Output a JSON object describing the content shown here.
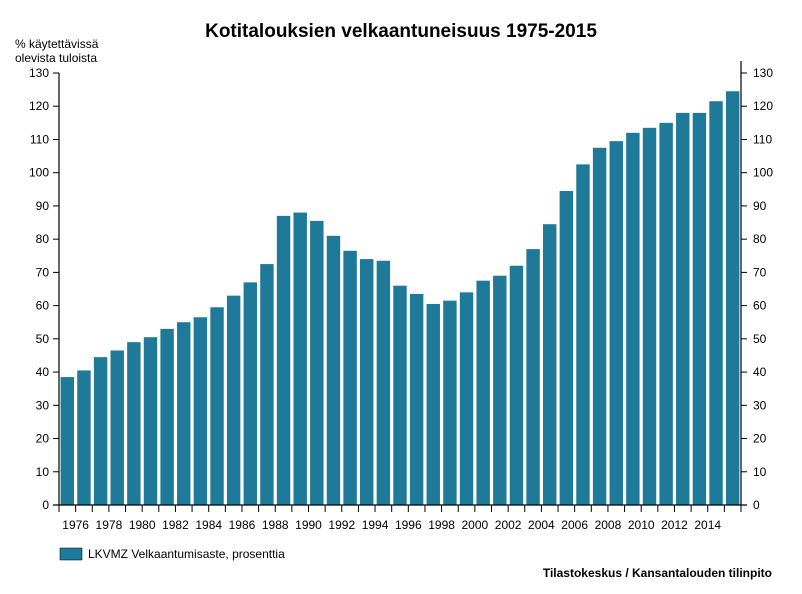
{
  "chart_data": {
    "type": "bar",
    "title": "Kotitalouksien velkaantuneisuus 1975-2015",
    "ylabel_lines": [
      "% käytettävissä",
      "olevista tuloista"
    ],
    "ylim": [
      0,
      130
    ],
    "yticks": [
      0,
      10,
      20,
      30,
      40,
      50,
      60,
      70,
      80,
      90,
      100,
      110,
      120,
      130
    ],
    "categories": [
      "1975",
      "1976",
      "1977",
      "1978",
      "1979",
      "1980",
      "1981",
      "1982",
      "1983",
      "1984",
      "1985",
      "1986",
      "1987",
      "1988",
      "1989",
      "1990",
      "1991",
      "1992",
      "1993",
      "1994",
      "1995",
      "1996",
      "1997",
      "1998",
      "1999",
      "2000",
      "2001",
      "2002",
      "2003",
      "2004",
      "2005",
      "2006",
      "2007",
      "2008",
      "2009",
      "2010",
      "2011",
      "2012",
      "2013",
      "2014",
      "2015"
    ],
    "x_tick_labels": [
      "1976",
      "1978",
      "1980",
      "1982",
      "1984",
      "1986",
      "1988",
      "1990",
      "1992",
      "1994",
      "1996",
      "1998",
      "2000",
      "2002",
      "2004",
      "2006",
      "2008",
      "2010",
      "2012",
      "2014"
    ],
    "series": [
      {
        "name": "LKVMZ Velkaantumisaste, prosenttia",
        "color": "#1f7a99",
        "values": [
          38.5,
          40.5,
          44.5,
          46.5,
          49,
          50.5,
          53,
          55,
          56.5,
          59.5,
          63,
          67,
          72.5,
          87,
          88,
          85.5,
          81,
          76.5,
          74,
          73.5,
          66,
          63.5,
          60.5,
          61.5,
          64,
          67.5,
          69,
          72,
          77,
          84.5,
          94.5,
          102.5,
          107.5,
          109.5,
          112,
          113.5,
          115,
          118,
          118,
          121.5,
          124.5
        ]
      }
    ],
    "grid": false,
    "legend_position": "bottom-left",
    "source": "Tilastokeskus / Kansantalouden tilinpito"
  }
}
